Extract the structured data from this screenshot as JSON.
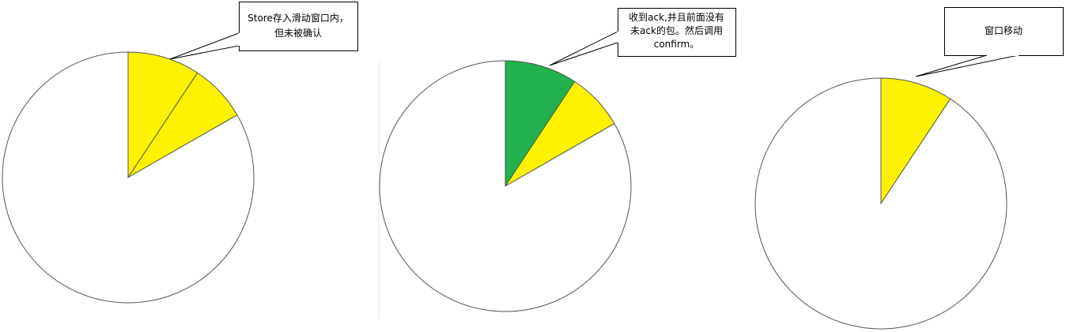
{
  "colors": {
    "outline": "#555555",
    "pending": "#FFF200",
    "confirmed": "#22B14C",
    "background": "#FFFFFF",
    "callout_border": "#000000",
    "divider": "#e6e6e6"
  },
  "panels": [
    {
      "id": "step1",
      "callout": {
        "lines": [
          "Store存入滑动窗口内，",
          "但未被确认"
        ]
      },
      "slices": [
        {
          "name": "segment-1",
          "state": "pending",
          "fraction": 0.093
        },
        {
          "name": "segment-2",
          "state": "pending",
          "fraction": 0.074
        },
        {
          "name": "remainder",
          "state": "empty",
          "fraction": 0.833
        }
      ]
    },
    {
      "id": "step2",
      "callout": {
        "lines": [
          "收到ack,并且前面没有",
          "未ack的包。然后调用",
          "confirm。"
        ]
      },
      "slices": [
        {
          "name": "segment-1",
          "state": "confirmed",
          "fraction": 0.093
        },
        {
          "name": "segment-2",
          "state": "pending",
          "fraction": 0.074
        },
        {
          "name": "remainder",
          "state": "empty",
          "fraction": 0.833
        }
      ]
    },
    {
      "id": "step3",
      "callout": {
        "lines": [
          "窗口移动"
        ]
      },
      "slices": [
        {
          "name": "segment-1",
          "state": "pending",
          "fraction": 0.093
        },
        {
          "name": "remainder",
          "state": "empty",
          "fraction": 0.907
        }
      ]
    }
  ]
}
